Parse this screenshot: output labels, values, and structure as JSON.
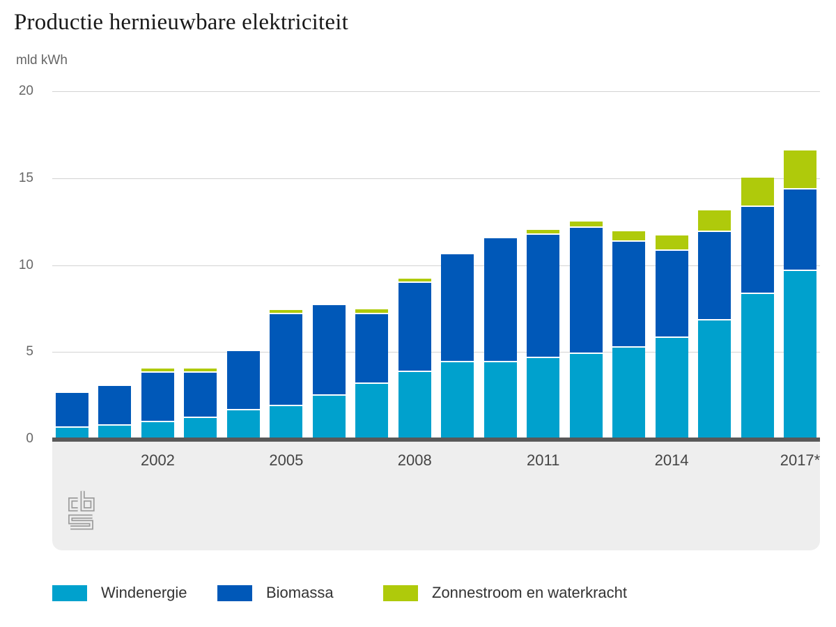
{
  "title": "Productie hernieuwbare elektriciteit",
  "unit_label": "mld kWh",
  "colors": {
    "windenergie": "#00a1cd",
    "biomassa": "#0058b8",
    "zonnestroom_waterkracht": "#afca0b",
    "baseline": "#595959",
    "footer_background": "#eeeeee",
    "gridline": "#d2d2d2",
    "axis_text": "#666666",
    "logo_gray": "#9c9c9c"
  },
  "icons": {
    "footer_logo": "cbs-logo"
  },
  "chart_data": {
    "type": "bar",
    "stacked": true,
    "title": "Productie hernieuwbare elektriciteit",
    "ylabel": "mld kWh",
    "xlabel": "",
    "ylim": [
      0,
      20
    ],
    "yticks": [
      0,
      5,
      10,
      15,
      20
    ],
    "grid": "horizontal",
    "legend_position": "bottom",
    "categories": [
      "2000",
      "2001",
      "2002",
      "2003",
      "2004",
      "2005",
      "2006",
      "2007",
      "2008",
      "2009",
      "2010",
      "2011",
      "2012",
      "2013",
      "2014",
      "2015",
      "2016",
      "2017"
    ],
    "x_tick_labels": [
      "",
      "",
      "2002",
      "",
      "",
      "2005",
      "",
      "",
      "2008",
      "",
      "",
      "2011",
      "",
      "",
      "2014",
      "",
      "",
      "2017*"
    ],
    "series": [
      {
        "name": "Windenergie",
        "color": "#00a1cd",
        "values": [
          0.65,
          0.75,
          0.95,
          1.2,
          1.65,
          1.9,
          2.5,
          3.15,
          3.85,
          4.4,
          4.4,
          4.65,
          4.9,
          5.25,
          5.8,
          6.8,
          8.35,
          9.65
        ]
      },
      {
        "name": "Biomassa",
        "color": "#0058b8",
        "values": [
          2.0,
          2.3,
          2.85,
          2.6,
          3.4,
          5.3,
          5.2,
          4.0,
          5.15,
          6.2,
          7.15,
          7.1,
          7.25,
          6.1,
          5.0,
          5.1,
          5.0,
          4.7
        ]
      },
      {
        "name": "Zonnestroom en waterkracht",
        "color": "#afca0b",
        "values": [
          0,
          0,
          0.15,
          0.15,
          0,
          0.15,
          0,
          0.2,
          0.15,
          0,
          0,
          0.2,
          0.35,
          0.6,
          0.9,
          1.25,
          1.7,
          2.25
        ]
      }
    ]
  }
}
